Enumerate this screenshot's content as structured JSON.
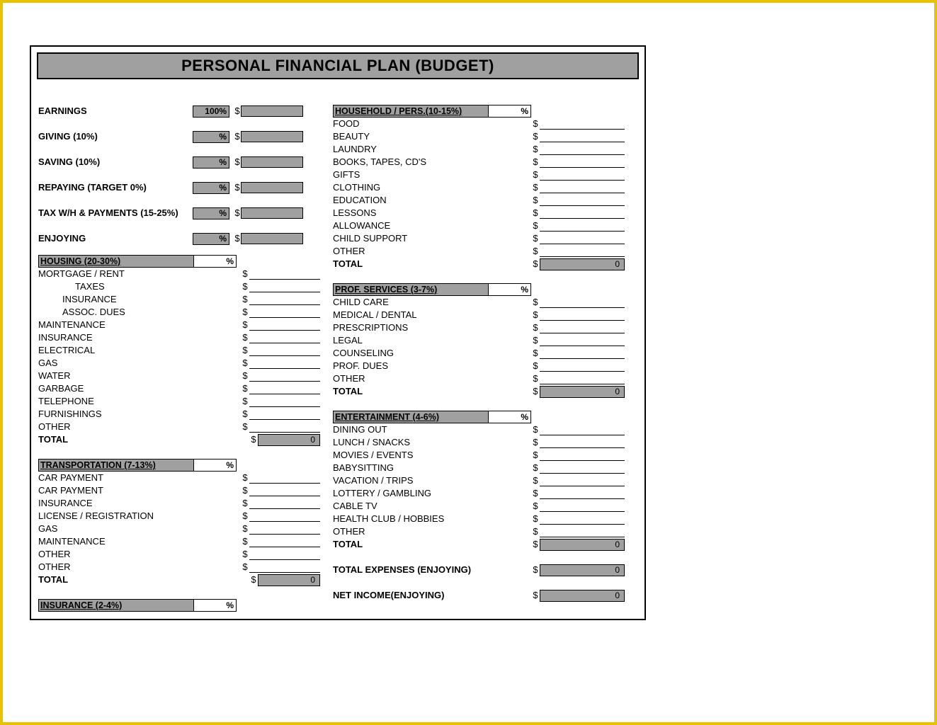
{
  "colors": {
    "frame_border": "#e6c200",
    "doc_border": "#000000",
    "header_bg": "#a0a0a0",
    "box_bg": "#a0a0a0",
    "text": "#000000",
    "page_bg": "#ffffff"
  },
  "title": "PERSONAL FINANCIAL PLAN (BUDGET)",
  "pct_suffix": "%",
  "currency": "$",
  "total_label": "TOTAL",
  "zero": "0",
  "earnings": [
    {
      "label": "EARNINGS",
      "pct": "100%"
    },
    {
      "label": "GIVING (10%)",
      "pct": "%"
    },
    {
      "label": "SAVING (10%)",
      "pct": "%"
    },
    {
      "label": "REPAYING (TARGET 0%)",
      "pct": "%"
    },
    {
      "label": "TAX W/H & PAYMENTS (15-25%)",
      "pct": "%"
    },
    {
      "label": "ENJOYING",
      "pct": "%"
    }
  ],
  "housing": {
    "header": "HOUSING (20-30%)",
    "items": [
      "MORTGAGE / RENT",
      "TAXES",
      "INSURANCE",
      "ASSOC. DUES",
      "MAINTENANCE",
      "INSURANCE",
      "ELECTRICAL",
      "GAS",
      "WATER",
      "GARBAGE",
      "TELEPHONE",
      "FURNISHINGS",
      "OTHER"
    ],
    "indents": {
      "1": "indent1",
      "2": "indent2",
      "3": "indent2"
    }
  },
  "transportation": {
    "header": "TRANSPORTATION (7-13%)",
    "items": [
      "CAR PAYMENT",
      "CAR PAYMENT",
      "INSURANCE",
      "LICENSE / REGISTRATION",
      "GAS",
      "MAINTENANCE",
      "OTHER",
      "OTHER"
    ]
  },
  "insurance": {
    "header": "INSURANCE (2-4%)"
  },
  "household": {
    "header": "HOUSEHOLD / PERS.(10-15%)",
    "items": [
      "FOOD",
      "BEAUTY",
      "LAUNDRY",
      "BOOKS, TAPES, CD'S",
      "GIFTS",
      "CLOTHING",
      "EDUCATION",
      "LESSONS",
      "ALLOWANCE",
      "CHILD SUPPORT",
      "OTHER"
    ]
  },
  "profservices": {
    "header": "PROF. SERVICES (3-7%)",
    "items": [
      "CHILD CARE",
      "MEDICAL / DENTAL",
      "PRESCRIPTIONS",
      "LEGAL",
      "COUNSELING",
      "PROF. DUES",
      "OTHER"
    ]
  },
  "entertainment": {
    "header": "ENTERTAINMENT (4-6%)",
    "items": [
      "DINING OUT",
      "LUNCH / SNACKS",
      "MOVIES / EVENTS",
      "BABYSITTING",
      "VACATION / TRIPS",
      "LOTTERY / GAMBLING",
      "CABLE TV",
      "HEALTH CLUB / HOBBIES",
      "OTHER"
    ]
  },
  "summary": {
    "total_expenses": "TOTAL EXPENSES (ENJOYING)",
    "net_income": "NET INCOME(ENJOYING)"
  }
}
